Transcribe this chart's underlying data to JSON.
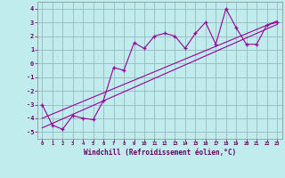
{
  "title": "",
  "xlabel": "Windchill (Refroidissement éolien,°C)",
  "ylabel": "",
  "background_color": "#c0ecee",
  "grid_color": "#9abfc4",
  "line_color": "#990099",
  "xlim": [
    -0.5,
    23.5
  ],
  "ylim": [
    -5.5,
    4.5
  ],
  "xticks": [
    0,
    1,
    2,
    3,
    4,
    5,
    6,
    7,
    8,
    9,
    10,
    11,
    12,
    13,
    14,
    15,
    16,
    17,
    18,
    19,
    20,
    21,
    22,
    23
  ],
  "yticks": [
    -5,
    -4,
    -3,
    -2,
    -1,
    0,
    1,
    2,
    3,
    4
  ],
  "data_x": [
    0,
    1,
    2,
    3,
    4,
    5,
    6,
    7,
    8,
    9,
    10,
    11,
    12,
    13,
    14,
    15,
    16,
    17,
    18,
    19,
    20,
    21,
    22,
    23
  ],
  "data_y": [
    -3.0,
    -4.5,
    -4.8,
    -3.8,
    -4.0,
    -4.1,
    -2.7,
    -0.3,
    -0.5,
    1.5,
    1.1,
    2.0,
    2.2,
    2.0,
    1.1,
    2.2,
    3.0,
    1.4,
    4.0,
    2.6,
    1.4,
    1.4,
    2.8,
    3.0
  ],
  "line1_x": [
    0,
    23
  ],
  "line1_y": [
    -4.7,
    2.85
  ],
  "line2_x": [
    0,
    23
  ],
  "line2_y": [
    -4.0,
    3.1
  ],
  "figsize": [
    3.2,
    2.0
  ],
  "dpi": 100
}
